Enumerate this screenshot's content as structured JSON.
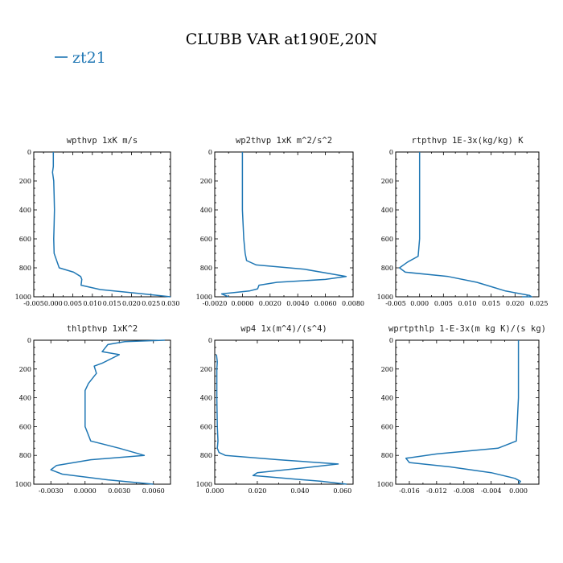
{
  "title": "CLUBB VAR at190E,20N",
  "legend": {
    "entries": [
      {
        "label": "zt21",
        "color": "#1f77b4"
      }
    ],
    "placement": "top-left"
  },
  "chart_data": [
    {
      "type": "line",
      "title": "wpthvp  1xK m/s",
      "xlim": [
        -0.005,
        0.03
      ],
      "ylim": [
        1000,
        0
      ],
      "xticks": [
        -0.005,
        0.0,
        0.005,
        0.01,
        0.015,
        0.02,
        0.025,
        0.03
      ],
      "xtick_labels": [
        "-0.005",
        "0.000",
        "0.005",
        "0.010",
        "0.015",
        "0.020",
        "0.025",
        "0.030"
      ],
      "yticks": [
        0,
        200,
        400,
        600,
        800,
        1000
      ],
      "ytick_labels": [
        "0",
        "200",
        "400",
        "600",
        "800",
        "1000"
      ],
      "series": [
        {
          "x": [
            0.0,
            0.0,
            -0.0002,
            0.0001,
            0.0002,
            0.0003,
            0.0002,
            0.0001,
            0.0002,
            0.0015,
            0.0052,
            0.007,
            0.0073,
            0.0071,
            0.012,
            0.023,
            0.03
          ],
          "y": [
            0,
            100,
            140,
            200,
            300,
            400,
            500,
            600,
            700,
            800,
            830,
            860,
            880,
            920,
            950,
            980,
            1000
          ]
        }
      ]
    },
    {
      "type": "line",
      "title": "wp2thvp  1xK m^2/s^2",
      "xlim": [
        -0.002,
        0.008
      ],
      "ylim": [
        1000,
        0
      ],
      "xticks": [
        -0.002,
        0.0,
        0.002,
        0.004,
        0.006,
        0.008
      ],
      "xtick_labels": [
        "-0.0020",
        "0.0000",
        "0.0020",
        "0.0040",
        "0.0060",
        "0.0080"
      ],
      "yticks": [
        0,
        200,
        400,
        600,
        800,
        1000
      ],
      "ytick_labels": [
        "0",
        "200",
        "400",
        "600",
        "800",
        "1000"
      ],
      "series": [
        {
          "x": [
            0.0,
            0.0,
            0.0,
            0.0001,
            0.0002,
            0.0003,
            0.001,
            0.0045,
            0.0075,
            0.006,
            0.0025,
            0.0012,
            0.0011,
            0.0005,
            -0.0015,
            -0.001
          ],
          "y": [
            0,
            200,
            400,
            600,
            700,
            750,
            780,
            810,
            860,
            880,
            900,
            920,
            945,
            960,
            980,
            1000
          ]
        }
      ]
    },
    {
      "type": "line",
      "title": "rtpthvp  1E-3x(kg/kg) K",
      "xlim": [
        -0.005,
        0.025
      ],
      "ylim": [
        1000,
        0
      ],
      "xticks": [
        -0.005,
        0.0,
        0.005,
        0.01,
        0.015,
        0.02,
        0.025
      ],
      "xtick_labels": [
        "-0.005",
        "0.000",
        "0.005",
        "0.010",
        "0.015",
        "0.020",
        "0.025"
      ],
      "yticks": [
        0,
        200,
        400,
        600,
        800,
        1000
      ],
      "ytick_labels": [
        "0",
        "200",
        "400",
        "600",
        "800",
        "1000"
      ],
      "series": [
        {
          "x": [
            0.0,
            0.0,
            0.0,
            0.0,
            -0.0003,
            -0.0025,
            -0.0042,
            -0.003,
            0.006,
            0.012,
            0.015,
            0.018,
            0.023,
            0.0235,
            0.0215
          ],
          "y": [
            0,
            200,
            400,
            600,
            720,
            760,
            800,
            830,
            860,
            900,
            930,
            960,
            990,
            1000,
            1000
          ]
        }
      ]
    },
    {
      "type": "line",
      "title": "thlpthvp  1xK^2",
      "xlim": [
        -0.0045,
        0.0075
      ],
      "ylim": [
        1000,
        0
      ],
      "xticks": [
        -0.003,
        0.0,
        0.003,
        0.006
      ],
      "xtick_labels": [
        "-0.0030",
        "0.0000",
        "0.0030",
        "0.0060"
      ],
      "yticks": [
        0,
        200,
        400,
        600,
        800,
        1000
      ],
      "ytick_labels": [
        "0",
        "200",
        "400",
        "600",
        "800",
        "1000"
      ],
      "series": [
        {
          "x": [
            0.007,
            0.0035,
            0.002,
            0.0015,
            0.003,
            0.0025,
            0.0015,
            0.0008,
            0.001,
            0.0003,
            0.0,
            0.0,
            0.0,
            0.0,
            0.0005,
            0.003,
            0.0052,
            0.0005,
            -0.0025,
            -0.003,
            -0.002,
            0.002,
            0.006
          ],
          "y": [
            0,
            10,
            30,
            80,
            100,
            120,
            160,
            180,
            230,
            300,
            350,
            400,
            500,
            600,
            700,
            750,
            800,
            830,
            870,
            900,
            930,
            970,
            1000
          ]
        }
      ]
    },
    {
      "type": "line",
      "title": "wp4  1x(m^4)/(s^4)",
      "xlim": [
        0.0,
        0.065
      ],
      "ylim": [
        1000,
        0
      ],
      "xticks": [
        0.0,
        0.02,
        0.04,
        0.06
      ],
      "xtick_labels": [
        "0.000",
        "0.020",
        "0.040",
        "0.060"
      ],
      "yticks": [
        0,
        200,
        400,
        600,
        800,
        1000
      ],
      "ytick_labels": [
        "0",
        "200",
        "400",
        "600",
        "800",
        "1000"
      ],
      "series": [
        {
          "x": [
            0.0008,
            0.0012,
            0.001,
            0.001,
            0.0012,
            0.0015,
            0.0012,
            0.002,
            0.005,
            0.03,
            0.058,
            0.04,
            0.02,
            0.018,
            0.05,
            0.062
          ],
          "y": [
            100,
            150,
            200,
            400,
            600,
            700,
            750,
            780,
            800,
            830,
            860,
            890,
            920,
            940,
            980,
            1000
          ]
        }
      ]
    },
    {
      "type": "line",
      "title": "wprtpthlp  1-E-3x(m kg K)/(s kg)",
      "xlim": [
        -0.018,
        0.003
      ],
      "ylim": [
        1000,
        0
      ],
      "xticks": [
        -0.016,
        -0.012,
        -0.008,
        -0.004,
        0.0
      ],
      "xtick_labels": [
        "-0.016",
        "-0.012",
        "-0.008",
        "-0.004",
        "0.000"
      ],
      "yticks": [
        0,
        200,
        400,
        600,
        800,
        1000
      ],
      "ytick_labels": [
        "0",
        "200",
        "400",
        "600",
        "800",
        "1000"
      ],
      "series": [
        {
          "x": [
            0.0,
            0.0,
            0.0,
            -0.0003,
            -0.003,
            -0.012,
            -0.0165,
            -0.016,
            -0.01,
            -0.004,
            -0.0005,
            0.0003,
            0.0
          ],
          "y": [
            0,
            200,
            400,
            700,
            750,
            790,
            820,
            850,
            880,
            920,
            960,
            980,
            1000
          ]
        }
      ]
    }
  ]
}
